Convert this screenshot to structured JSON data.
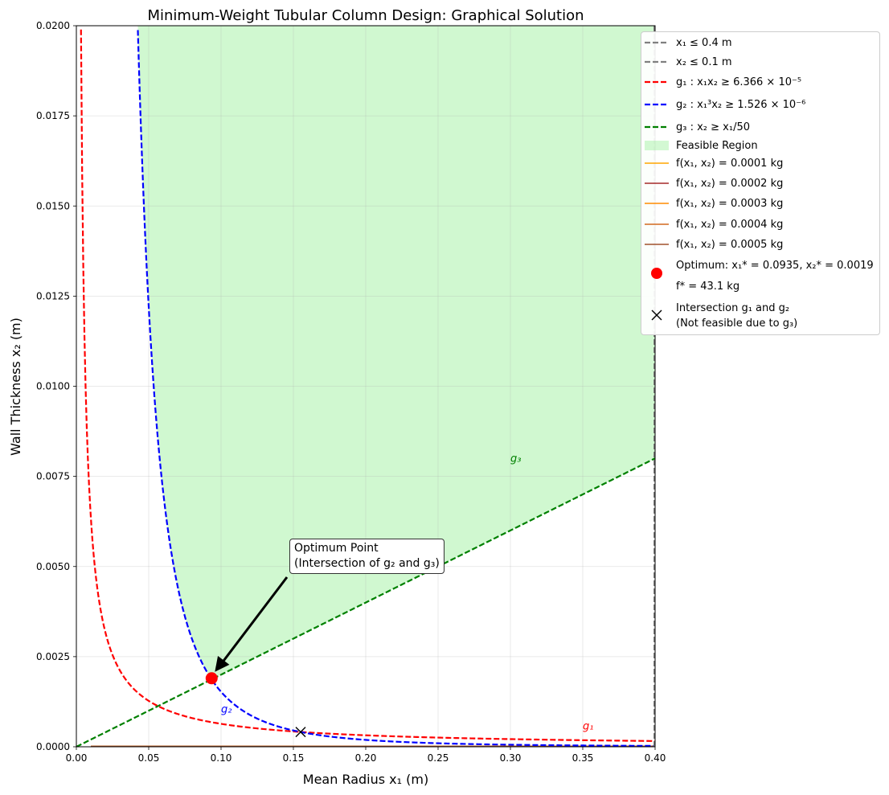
{
  "chart_data": {
    "type": "line",
    "title": "Minimum-Weight Tubular Column Design: Graphical Solution",
    "xlabel": "Mean Radius x₁ (m)",
    "ylabel": "Wall Thickness x₂ (m)",
    "xlim": [
      0,
      0.4
    ],
    "ylim": [
      0,
      0.02
    ],
    "xticks": [
      "0.00",
      "0.05",
      "0.10",
      "0.15",
      "0.20",
      "0.25",
      "0.30",
      "0.35",
      "0.40"
    ],
    "yticks": [
      "0.0000",
      "0.0025",
      "0.0050",
      "0.0075",
      "0.0100",
      "0.0125",
      "0.0150",
      "0.0175",
      "0.0200"
    ],
    "grid": true,
    "legend_position": "upper right, outside",
    "constraints": {
      "g1": {
        "label": "g₁",
        "product": 6.366e-05,
        "x_start": 0.0032,
        "color": "#ff0000"
      },
      "g2": {
        "label": "g₂",
        "product": 1.526e-06,
        "x_start": 0.0425,
        "color": "#0000ff"
      },
      "g3": {
        "label": "g₃",
        "slope": 0.02,
        "color": "#008000"
      },
      "x1_bound": 0.4,
      "x2_bound": 0.1
    },
    "contours": [
      {
        "label": "f(x₁, x₂) = 0.0001 kg",
        "level": 0.0001,
        "color": "#ffa500"
      },
      {
        "label": "f(x₁, x₂) = 0.0002 kg",
        "level": 0.0002,
        "color": "#a52a2a"
      },
      {
        "label": "f(x₁, x₂) = 0.0003 kg",
        "level": 0.0003,
        "color": "#ff8c00"
      },
      {
        "label": "f(x₁, x₂) = 0.0004 kg",
        "level": 0.0004,
        "color": "#d2691e"
      },
      {
        "label": "f(x₁, x₂) = 0.0005 kg",
        "level": 0.0005,
        "color": "#a0522d"
      }
    ],
    "optimum": {
      "x": 0.0935,
      "y": 0.0019,
      "color": "#ff0000"
    },
    "intersection": {
      "x": 0.155,
      "y": 0.00041
    },
    "curve_labels": [
      {
        "text": "g₃",
        "x": 0.3,
        "y": 0.0079,
        "color": "#008000"
      },
      {
        "text": "g₂",
        "x": 0.1,
        "y": 0.00095,
        "color": "#0000ff"
      },
      {
        "text": "g₁",
        "x": 0.35,
        "y": 0.00048,
        "color": "#ff0000"
      }
    ],
    "feasible_color": "#90ee90",
    "bound_color": "#808080"
  },
  "legend": {
    "x1_bound": "x₁ ≤ 0.4 m",
    "x2_bound": "x₂ ≤ 0.1 m",
    "g1": "g₁ : x₁x₂ ≥ 6.366 × 10⁻⁵",
    "g2": "g₂ : x₁³x₂ ≥ 1.526 × 10⁻⁶",
    "g3": "g₃ : x₂ ≥ x₁/50",
    "feasible": "Feasible Region",
    "optimum_line1": "Optimum: x₁* = 0.0935, x₂* = 0.0019",
    "optimum_line2": "f* = 43.1 kg",
    "intersection_line1": "Intersection g₁ and g₂",
    "intersection_line2": "(Not feasible due to g₃)"
  },
  "annotation": {
    "line1": "Optimum Point",
    "line2": "(Intersection of g₂ and g₃)"
  }
}
